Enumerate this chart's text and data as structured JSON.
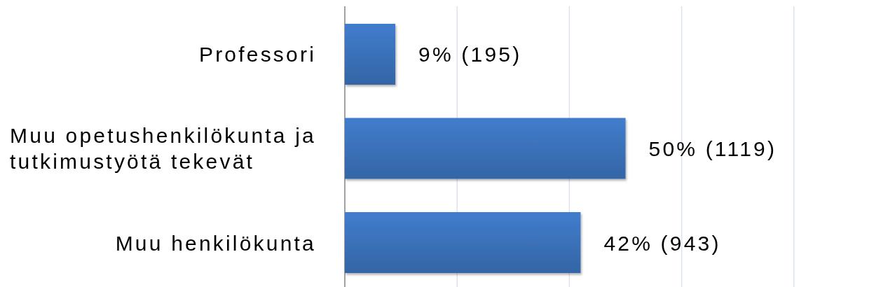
{
  "chart_data": {
    "type": "bar",
    "orientation": "horizontal",
    "categories": [
      "Professori",
      "Muu opetushenkilökunta ja tutkimustyötä tekevät",
      "Muu henkilökunta"
    ],
    "values": [
      9,
      50,
      42
    ],
    "value_labels": [
      "9% (195)",
      "50% (1119)",
      "42% (943)"
    ],
    "color": "#3a70b8",
    "xlim": [
      0,
      98
    ],
    "xticks": [
      {
        "value": 0,
        "label": null
      },
      {
        "value": 20,
        "label": null
      },
      {
        "value": 40,
        "label": null
      },
      {
        "value": 60,
        "label": null
      },
      {
        "value": 80,
        "label": null
      }
    ],
    "grid": "x",
    "tick_labels": "y"
  }
}
